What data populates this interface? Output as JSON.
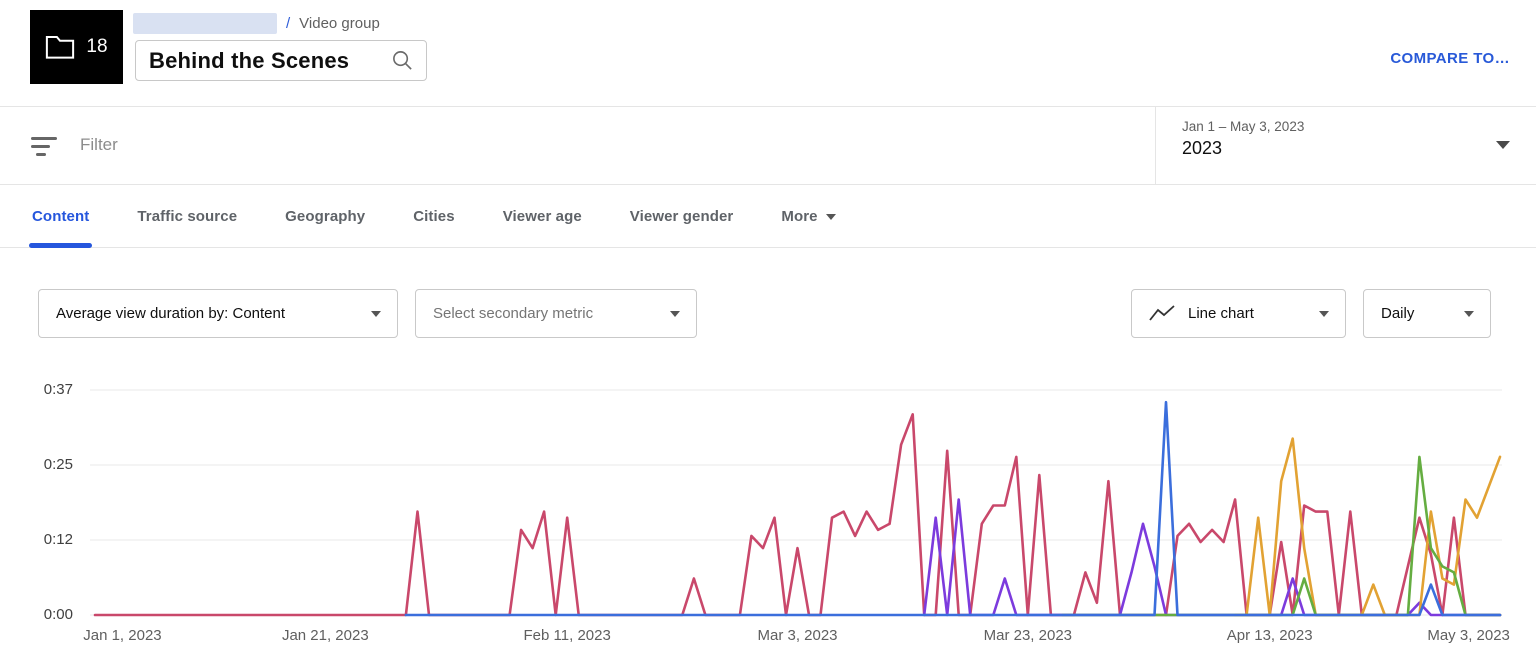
{
  "header": {
    "folder_badge": {
      "count": "18"
    },
    "breadcrumb": {
      "separator": "/",
      "group_type": "Video group"
    },
    "title": "Behind the Scenes",
    "compare_link": "COMPARE TO…"
  },
  "filter_bar": {
    "placeholder": "Filter",
    "date_picker": {
      "range": "Jan 1 – May 3, 2023",
      "selected_label": "2023"
    }
  },
  "tabs": {
    "items": [
      {
        "label": "Content",
        "active": true
      },
      {
        "label": "Traffic source"
      },
      {
        "label": "Geography"
      },
      {
        "label": "Cities"
      },
      {
        "label": "Viewer age"
      },
      {
        "label": "Viewer gender"
      },
      {
        "label": "More"
      }
    ]
  },
  "controls": {
    "metric_dropdown": "Average view duration by: Content",
    "secondary_metric_dropdown": "Select secondary metric",
    "chart_type_dropdown": "Line chart",
    "granularity_dropdown": "Daily"
  },
  "chart_data": {
    "type": "line",
    "metric": "Average view duration",
    "granularity": "Daily",
    "grid": true,
    "legend": "none",
    "x_axis": {
      "tick_labels": [
        "Jan 1, 2023",
        "Jan 21, 2023",
        "Feb 11, 2023",
        "Mar 3, 2023",
        "Mar 23, 2023",
        "Apr 13, 2023",
        "May 3, 2023"
      ],
      "tick_days": [
        0,
        20,
        41,
        61,
        81,
        102,
        122
      ],
      "total_days": 122
    },
    "y_axis": {
      "tick_labels": [
        "0:37",
        "0:25",
        "0:12",
        "0:00"
      ],
      "tick_seconds": [
        37,
        24.67,
        12.33,
        0
      ],
      "max_seconds": 37,
      "unit": "minutes:seconds"
    },
    "series": [
      {
        "name": "rose",
        "color": "#c9486b",
        "points": [
          [
            0,
            0
          ],
          [
            27,
            0
          ],
          [
            28,
            17
          ],
          [
            29,
            0
          ],
          [
            36,
            0
          ],
          [
            37,
            14
          ],
          [
            38,
            11
          ],
          [
            39,
            17
          ],
          [
            40,
            0
          ],
          [
            41,
            16
          ],
          [
            42,
            0
          ],
          [
            51,
            0
          ],
          [
            52,
            6
          ],
          [
            53,
            0
          ],
          [
            56,
            0
          ],
          [
            57,
            13
          ],
          [
            58,
            11
          ],
          [
            59,
            16
          ],
          [
            60,
            0
          ],
          [
            61,
            11
          ],
          [
            62,
            0
          ],
          [
            63,
            0
          ],
          [
            64,
            16
          ],
          [
            65,
            17
          ],
          [
            66,
            13
          ],
          [
            67,
            17
          ],
          [
            68,
            14
          ],
          [
            69,
            15
          ],
          [
            70,
            28
          ],
          [
            71,
            33
          ],
          [
            72,
            0
          ],
          [
            73,
            0
          ],
          [
            74,
            27
          ],
          [
            75,
            0
          ],
          [
            76,
            0
          ],
          [
            77,
            15
          ],
          [
            78,
            18
          ],
          [
            79,
            18
          ],
          [
            80,
            26
          ],
          [
            81,
            0
          ],
          [
            82,
            23
          ],
          [
            83,
            0
          ],
          [
            85,
            0
          ],
          [
            86,
            7
          ],
          [
            87,
            2
          ],
          [
            88,
            22
          ],
          [
            89,
            0
          ],
          [
            93,
            0
          ],
          [
            94,
            13
          ],
          [
            95,
            15
          ],
          [
            96,
            12
          ],
          [
            97,
            14
          ],
          [
            98,
            12
          ],
          [
            99,
            19
          ],
          [
            100,
            0
          ],
          [
            102,
            0
          ],
          [
            103,
            12
          ],
          [
            104,
            0
          ],
          [
            105,
            18
          ],
          [
            106,
            17
          ],
          [
            107,
            17
          ],
          [
            108,
            0
          ],
          [
            109,
            17
          ],
          [
            110,
            0
          ],
          [
            113,
            0
          ],
          [
            115,
            16
          ],
          [
            116,
            10
          ],
          [
            117,
            0
          ],
          [
            118,
            16
          ],
          [
            119,
            0
          ],
          [
            122,
            0
          ]
        ]
      },
      {
        "name": "purple",
        "color": "#7c3bdd",
        "points": [
          [
            72,
            0
          ],
          [
            73,
            16
          ],
          [
            74,
            0
          ],
          [
            75,
            19
          ],
          [
            76,
            0
          ],
          [
            78,
            0
          ],
          [
            79,
            6
          ],
          [
            80,
            0
          ],
          [
            89,
            0
          ],
          [
            90,
            7
          ],
          [
            91,
            15
          ],
          [
            92,
            8
          ],
          [
            93,
            0
          ],
          [
            103,
            0
          ],
          [
            104,
            6
          ],
          [
            105,
            0
          ],
          [
            114,
            0
          ],
          [
            115,
            2
          ],
          [
            116,
            0
          ],
          [
            122,
            0
          ]
        ]
      },
      {
        "name": "orange",
        "color": "#e2a233",
        "points": [
          [
            99,
            0
          ],
          [
            100,
            0
          ],
          [
            101,
            16
          ],
          [
            102,
            0
          ],
          [
            103,
            22
          ],
          [
            104,
            29
          ],
          [
            105,
            11
          ],
          [
            106,
            0
          ],
          [
            110,
            0
          ],
          [
            111,
            5
          ],
          [
            112,
            0
          ],
          [
            115,
            0
          ],
          [
            116,
            17
          ],
          [
            117,
            6
          ],
          [
            118,
            5
          ],
          [
            119,
            19
          ],
          [
            120,
            16
          ],
          [
            121,
            21
          ],
          [
            122,
            26
          ]
        ]
      },
      {
        "name": "green",
        "color": "#65ad41",
        "points": [
          [
            84,
            0
          ],
          [
            104,
            0
          ],
          [
            105,
            6
          ],
          [
            106,
            0
          ],
          [
            114,
            0
          ],
          [
            115,
            26
          ],
          [
            116,
            11
          ],
          [
            117,
            8
          ],
          [
            118,
            7
          ],
          [
            119,
            0
          ],
          [
            122,
            0
          ]
        ]
      },
      {
        "name": "blue",
        "color": "#3b6edc",
        "points": [
          [
            27,
            0
          ],
          [
            91,
            0
          ],
          [
            92,
            0
          ],
          [
            93,
            35
          ],
          [
            94,
            0
          ],
          [
            115,
            0
          ],
          [
            116,
            5
          ],
          [
            117,
            0
          ],
          [
            122,
            0
          ]
        ]
      }
    ]
  }
}
